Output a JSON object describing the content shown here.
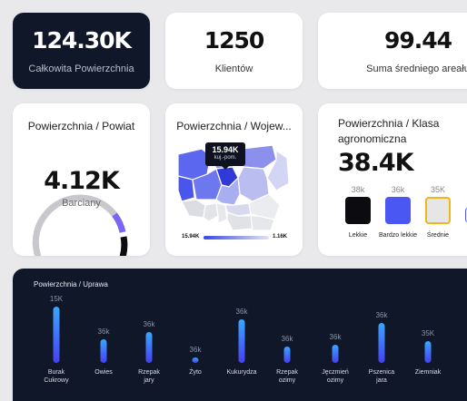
{
  "kpis": [
    {
      "value": "124.30K",
      "label": "Całkowita Powierzchnia"
    },
    {
      "value": "1250",
      "label": "Klientów"
    },
    {
      "value": "99.44",
      "label": "Suma średniego areału"
    }
  ],
  "donut": {
    "title": "Powierzchnia / Powiat",
    "value": "4.12K",
    "label": "Barciany"
  },
  "map": {
    "title": "Powierzchnia / Wojew...",
    "tooltip_value": "15.94K",
    "tooltip_label": "kuj.-pom.",
    "legend_min": "15.94K",
    "legend_max": "1.16K"
  },
  "klasa": {
    "title_line1": "Powierzchnia / Klasa",
    "title_line2": "agronomiczna",
    "value": "38.4K",
    "items": [
      {
        "value": "38k",
        "label": "Lekkie",
        "color": "#0b0b10"
      },
      {
        "value": "36k",
        "label": "Bardzo lekkie",
        "color": "#4a57f2"
      },
      {
        "value": "35K",
        "label": "Średnie",
        "color": "#e6e6e6"
      }
    ]
  },
  "chart_data": {
    "type": "bar",
    "title": "Powierzchnia / Uprawa",
    "categories": [
      "Burak Cukrowy",
      "Owies",
      "Rzepak jary",
      "Żyto",
      "Kukurydza",
      "Rzepak ozimy",
      "Jęczmień ozimy",
      "Pszenica jara",
      "Ziemniak"
    ],
    "data_labels": [
      "15K",
      "36k",
      "36k",
      "36k",
      "36k",
      "36k",
      "36k",
      "36k",
      "35K"
    ],
    "values": [
      15,
      36,
      36,
      36,
      36,
      36,
      36,
      36,
      35
    ],
    "category_lines": [
      [
        "Burak",
        "Cukrowy"
      ],
      [
        "Owies"
      ],
      [
        "Rzepak",
        "jary"
      ],
      [
        "Żyto"
      ],
      [
        "Kukurydza"
      ],
      [
        "Rzepak",
        "ozimy"
      ],
      [
        "Jęczmień",
        "ozimy"
      ],
      [
        "Pszenica",
        "jara"
      ],
      [
        "Ziemniak"
      ]
    ]
  }
}
